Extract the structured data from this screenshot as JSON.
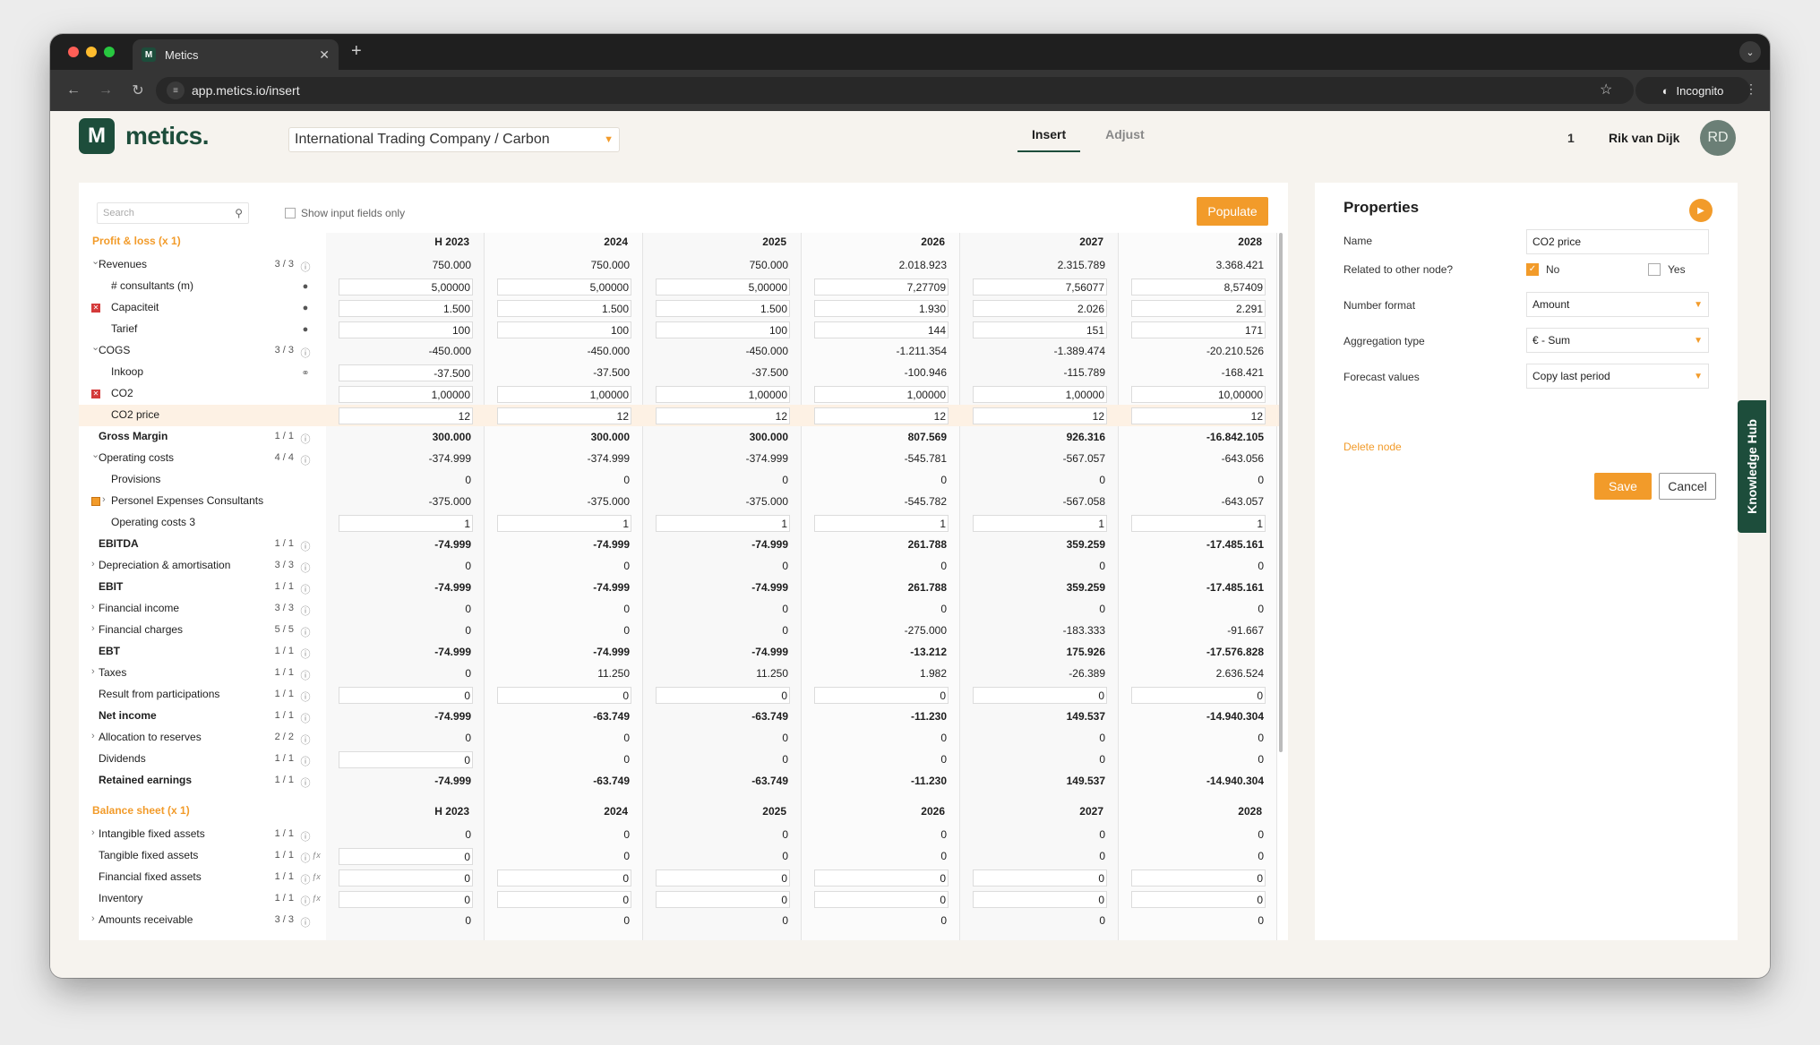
{
  "browser": {
    "tab_title": "Metics",
    "favicon": "M",
    "tab_close": "✕",
    "new_tab": "+",
    "url": "app.metics.io/insert",
    "incognito": "Incognito",
    "colors": {
      "close": "#ff5f57",
      "minimize": "#febc2e",
      "maximize": "#28c840"
    }
  },
  "header": {
    "logo_mark": "M",
    "logo_text": "metics.",
    "company": "International Trading Company / Carbon",
    "tabs": [
      "Insert",
      "Adjust"
    ],
    "notification_count": "1",
    "user_name": "Rik van Dijk",
    "user_initials": "RD"
  },
  "toolbar": {
    "search_placeholder": "Search",
    "show_input_label": "Show input fields only",
    "populate_label": "Populate"
  },
  "years": [
    "H 2023",
    "2024",
    "2025",
    "2026",
    "2027",
    "2028"
  ],
  "pl": {
    "title": "Profit & loss (x 1)",
    "rows": [
      {
        "label": "Revenues",
        "count": "3 / 3",
        "values": [
          "750.000",
          "750.000",
          "750.000",
          "2.018.923",
          "2.315.789",
          "3.368.421"
        ]
      },
      {
        "label": "# consultants (m)",
        "values": [
          "5,00000",
          "5,00000",
          "5,00000",
          "7,27709",
          "7,56077",
          "8,57409"
        ]
      },
      {
        "label": "Capaciteit",
        "values": [
          "1.500",
          "1.500",
          "1.500",
          "1.930",
          "2.026",
          "2.291"
        ]
      },
      {
        "label": "Tarief",
        "values": [
          "100",
          "100",
          "100",
          "144",
          "151",
          "171"
        ]
      },
      {
        "label": "COGS",
        "count": "3 / 3",
        "values": [
          "-450.000",
          "-450.000",
          "-450.000",
          "-1.211.354",
          "-1.389.474",
          "-20.210.526"
        ]
      },
      {
        "label": "Inkoop",
        "values": [
          "-37.500",
          "-37.500",
          "-37.500",
          "-100.946",
          "-115.789",
          "-168.421"
        ]
      },
      {
        "label": "CO2",
        "values": [
          "1,00000",
          "1,00000",
          "1,00000",
          "1,00000",
          "1,00000",
          "10,00000"
        ]
      },
      {
        "label": "CO2 price",
        "values": [
          "12",
          "12",
          "12",
          "12",
          "12",
          "12"
        ]
      },
      {
        "label": "Gross Margin",
        "count": "1 / 1",
        "values": [
          "300.000",
          "300.000",
          "300.000",
          "807.569",
          "926.316",
          "-16.842.105"
        ]
      },
      {
        "label": "Operating costs",
        "count": "4 / 4",
        "values": [
          "-374.999",
          "-374.999",
          "-374.999",
          "-545.781",
          "-567.057",
          "-643.056"
        ]
      },
      {
        "label": "Provisions",
        "values": [
          "0",
          "0",
          "0",
          "0",
          "0",
          "0"
        ]
      },
      {
        "label": "Personel Expenses Consultants",
        "values": [
          "-375.000",
          "-375.000",
          "-375.000",
          "-545.782",
          "-567.058",
          "-643.057"
        ]
      },
      {
        "label": "Operating costs 3",
        "values": [
          "1",
          "1",
          "1",
          "1",
          "1",
          "1"
        ]
      },
      {
        "label": "EBITDA",
        "count": "1 / 1",
        "values": [
          "-74.999",
          "-74.999",
          "-74.999",
          "261.788",
          "359.259",
          "-17.485.161"
        ]
      },
      {
        "label": "Depreciation & amortisation",
        "count": "3 / 3",
        "values": [
          "0",
          "0",
          "0",
          "0",
          "0",
          "0"
        ]
      },
      {
        "label": "EBIT",
        "count": "1 / 1",
        "values": [
          "-74.999",
          "-74.999",
          "-74.999",
          "261.788",
          "359.259",
          "-17.485.161"
        ]
      },
      {
        "label": "Financial income",
        "count": "3 / 3",
        "values": [
          "0",
          "0",
          "0",
          "0",
          "0",
          "0"
        ]
      },
      {
        "label": "Financial charges",
        "count": "5 / 5",
        "values": [
          "0",
          "0",
          "0",
          "-275.000",
          "-183.333",
          "-91.667"
        ]
      },
      {
        "label": "EBT",
        "count": "1 / 1",
        "values": [
          "-74.999",
          "-74.999",
          "-74.999",
          "-13.212",
          "175.926",
          "-17.576.828"
        ]
      },
      {
        "label": "Taxes",
        "count": "1 / 1",
        "values": [
          "0",
          "11.250",
          "11.250",
          "1.982",
          "-26.389",
          "2.636.524"
        ]
      },
      {
        "label": "Result from participations",
        "count": "1 / 1",
        "values": [
          "0",
          "0",
          "0",
          "0",
          "0",
          "0"
        ]
      },
      {
        "label": "Net income",
        "count": "1 / 1",
        "values": [
          "-74.999",
          "-63.749",
          "-63.749",
          "-11.230",
          "149.537",
          "-14.940.304"
        ]
      },
      {
        "label": "Allocation to reserves",
        "count": "2 / 2",
        "values": [
          "0",
          "0",
          "0",
          "0",
          "0",
          "0"
        ]
      },
      {
        "label": "Dividends",
        "count": "1 / 1",
        "values": [
          "0",
          "0",
          "0",
          "0",
          "0",
          "0"
        ]
      },
      {
        "label": "Retained earnings",
        "count": "1 / 1",
        "values": [
          "-74.999",
          "-63.749",
          "-63.749",
          "-11.230",
          "149.537",
          "-14.940.304"
        ]
      }
    ]
  },
  "bs": {
    "title": "Balance sheet (x 1)",
    "rows": [
      {
        "label": "Intangible fixed assets",
        "count": "1 / 1",
        "values": [
          "0",
          "0",
          "0",
          "0",
          "0",
          "0"
        ]
      },
      {
        "label": "Tangible fixed assets",
        "count": "1 / 1",
        "values": [
          "0",
          "0",
          "0",
          "0",
          "0",
          "0"
        ]
      },
      {
        "label": "Financial fixed assets",
        "count": "1 / 1",
        "values": [
          "0",
          "0",
          "0",
          "0",
          "0",
          "0"
        ]
      },
      {
        "label": "Inventory",
        "count": "1 / 1",
        "values": [
          "0",
          "0",
          "0",
          "0",
          "0",
          "0"
        ]
      },
      {
        "label": "Amounts receivable",
        "count": "3 / 3",
        "values": [
          "0",
          "0",
          "0",
          "0",
          "0",
          "0"
        ]
      }
    ]
  },
  "properties": {
    "title": "Properties",
    "name_label": "Name",
    "name_value": "CO2 price",
    "related_label": "Related to other node?",
    "related_no": "No",
    "related_yes": "Yes",
    "number_format_label": "Number format",
    "number_format_value": "Amount",
    "aggregation_label": "Aggregation type",
    "aggregation_value": "€ - Sum",
    "forecast_label": "Forecast values",
    "forecast_value": "Copy last period",
    "delete_label": "Delete node",
    "save_label": "Save",
    "cancel_label": "Cancel"
  },
  "knowledge_hub": "Knowledge Hub",
  "colors": {
    "brand": "#1d4d3b",
    "accent": "#f29b2a",
    "selected_row": "#fdf1e4"
  }
}
